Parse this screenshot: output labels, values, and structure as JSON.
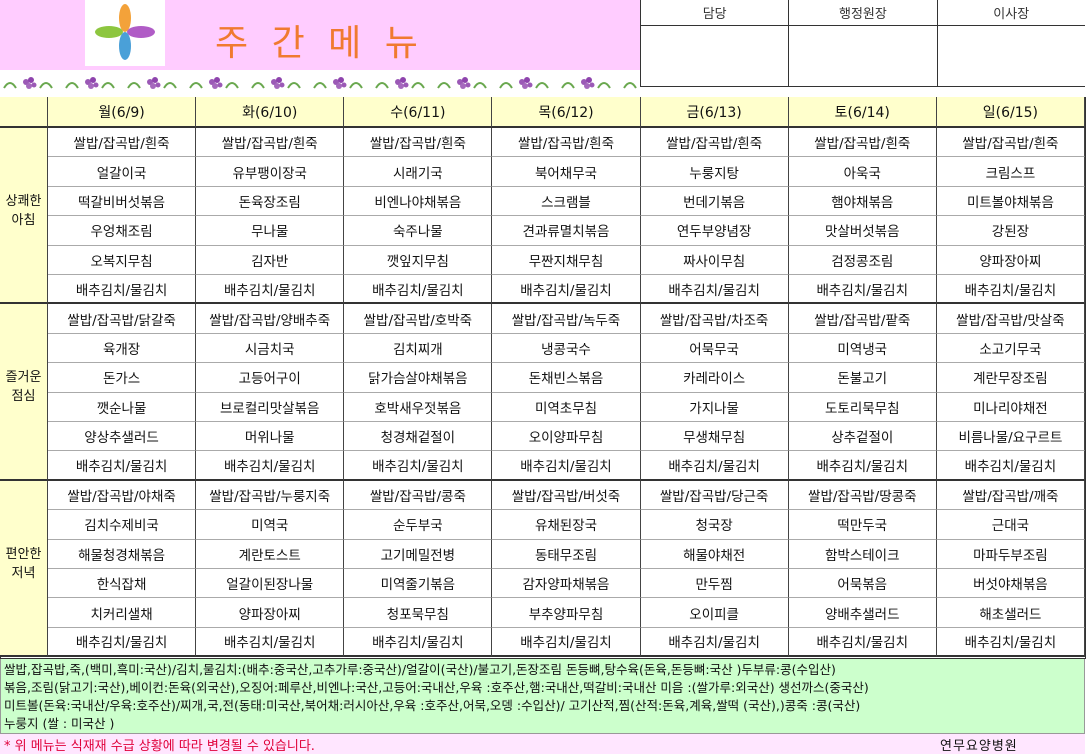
{
  "header": {
    "title": "주 간 메 뉴",
    "approvals": [
      "담당",
      "행정원장",
      "이사장"
    ]
  },
  "table": {
    "days": [
      "월(6/9)",
      "화(6/10)",
      "수(6/11)",
      "목(6/12)",
      "금(6/13)",
      "토(6/14)",
      "일(6/15)"
    ],
    "meals": [
      {
        "label": "상쾌한\n아침",
        "rows": [
          [
            "쌀밥/잡곡밥/흰죽",
            "쌀밥/잡곡밥/흰죽",
            "쌀밥/잡곡밥/흰죽",
            "쌀밥/잡곡밥/흰죽",
            "쌀밥/잡곡밥/흰죽",
            "쌀밥/잡곡밥/흰죽",
            "쌀밥/잡곡밥/흰죽"
          ],
          [
            "얼갈이국",
            "유부팽이장국",
            "시래기국",
            "북어채무국",
            "누룽지탕",
            "아욱국",
            "크림스프"
          ],
          [
            "떡갈비버섯볶음",
            "돈육장조림",
            "비엔나야채볶음",
            "스크램블",
            "번데기볶음",
            "햄야채볶음",
            "미트볼야채볶음"
          ],
          [
            "우엉채조림",
            "무나물",
            "숙주나물",
            "견과류멸치볶음",
            "연두부양념장",
            "맛살버섯볶음",
            "강된장"
          ],
          [
            "오복지무침",
            "김자반",
            "깻잎지무침",
            "무짠지채무침",
            "짜사이무침",
            "검정콩조림",
            "양파장아찌"
          ],
          [
            "배추김치/물김치",
            "배추김치/물김치",
            "배추김치/물김치",
            "배추김치/물김치",
            "배추김치/물김치",
            "배추김치/물김치",
            "배추김치/물김치"
          ]
        ]
      },
      {
        "label": "즐거운\n점심",
        "rows": [
          [
            "쌀밥/잡곡밥/닭갈죽",
            "쌀밥/잡곡밥/양배추죽",
            "쌀밥/잡곡밥/호박죽",
            "쌀밥/잡곡밥/녹두죽",
            "쌀밥/잡곡밥/차조죽",
            "쌀밥/잡곡밥/팥죽",
            "쌀밥/잡곡밥/맛살죽"
          ],
          [
            "육개장",
            "시금치국",
            "김치찌개",
            "냉콩국수",
            "어묵무국",
            "미역냉국",
            "소고기무국"
          ],
          [
            "돈가스",
            "고등어구이",
            "닭가슴살야채볶음",
            "돈채빈스볶음",
            "카레라이스",
            "돈불고기",
            "계란무장조림"
          ],
          [
            "깻순나물",
            "브로컬리맛살볶음",
            "호박새우젓볶음",
            "미역초무침",
            "가지나물",
            "도토리묵무침",
            "미나리야채전"
          ],
          [
            "양상추샐러드",
            "머위나물",
            "청경채겉절이",
            "오이양파무침",
            "무생채무침",
            "상추겉절이",
            "비름나물/요구르트"
          ],
          [
            "배추김치/물김치",
            "배추김치/물김치",
            "배추김치/물김치",
            "배추김치/물김치",
            "배추김치/물김치",
            "배추김치/물김치",
            "배추김치/물김치"
          ]
        ]
      },
      {
        "label": "편안한\n저녁",
        "rows": [
          [
            "쌀밥/잡곡밥/야채죽",
            "쌀밥/잡곡밥/누룽지죽",
            "쌀밥/잡곡밥/콩죽",
            "쌀밥/잡곡밥/버섯죽",
            "쌀밥/잡곡밥/당근죽",
            "쌀밥/잡곡밥/땅콩죽",
            "쌀밥/잡곡밥/깨죽"
          ],
          [
            "김치수제비국",
            "미역국",
            "순두부국",
            "유채된장국",
            "청국장",
            "떡만두국",
            "근대국"
          ],
          [
            "해물청경채볶음",
            "계란토스트",
            "고기메밀전병",
            "동태무조림",
            "해물야채전",
            "함박스테이크",
            "마파두부조림"
          ],
          [
            "한식잡채",
            "얼갈이된장나물",
            "미역줄기볶음",
            "감자양파채볶음",
            "만두찜",
            "어묵볶음",
            "버섯야채볶음"
          ],
          [
            "치커리샐채",
            "양파장아찌",
            "청포묵무침",
            "부추양파무침",
            "오이피클",
            "양배추샐러드",
            "해초샐러드"
          ],
          [
            "배추김치/물김치",
            "배추김치/물김치",
            "배추김치/물김치",
            "배추김치/물김치",
            "배추김치/물김치",
            "배추김치/물김치",
            "배추김치/물김치"
          ]
        ]
      }
    ]
  },
  "footer": {
    "origin_lines": [
      "쌀밥,잡곡밥,죽,(백미,흑미:국산)/김치,물김치:(배추:중국산,고추가루:중국산)/얼갈이(국산)/불고기,돈장조림 돈등뼈,탕수육(돈육,돈등뼈:국산 )두부류:콩(수입산)",
      "볶음,조림(닭고기:국산),베이컨:돈육(외국산),오징어:페루산,비엔나:국산,고등어:국내산,우육 :호주산,햄:국내산,떡갈비:국내산 미음 :(쌀가루:외국산) 생선까스(중국산)",
      "미트볼(돈육:국내산/우육:호주산)/찌개,국,전(동태:미국산,북어채:러시아산,우육 :호주산,어묵,오뎅 :수입산)/ 고기산적,찜(산적:돈육,계육,쌀떡 (국산),)콩죽 :콩(국산)",
      "누룽지 (쌀 : 미국산 )"
    ],
    "notice": "* 위 메뉴는 식재재 수급 상황에 따라 변경될 수 있습니다.",
    "hospital": "연무요양병원"
  }
}
